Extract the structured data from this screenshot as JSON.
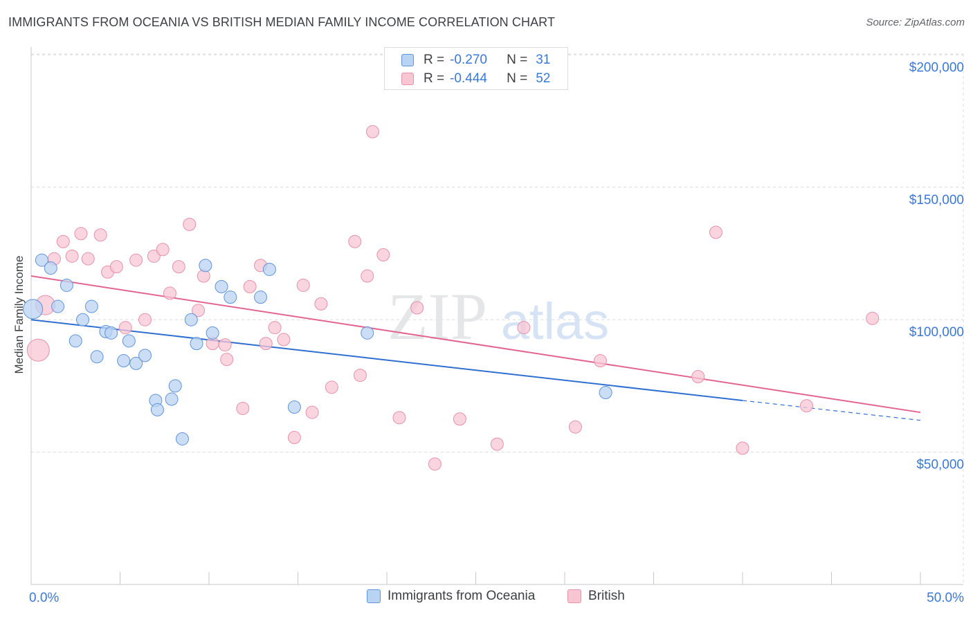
{
  "header": {
    "title": "IMMIGRANTS FROM OCEANIA VS BRITISH MEDIAN FAMILY INCOME CORRELATION CHART",
    "source": "Source: ZipAtlas.com"
  },
  "watermark": {
    "zip": "ZIP",
    "atlas": "atlas"
  },
  "legend": {
    "rows": [
      {
        "r_label": "R =",
        "r_value": "-0.270",
        "n_label": "N =",
        "n_value": "31"
      },
      {
        "r_label": "R =",
        "r_value": "-0.444",
        "n_label": "N =",
        "n_value": "52"
      }
    ]
  },
  "colors": {
    "blue_fill": "#b9d3f3",
    "blue_stroke": "#5f94d8",
    "blue_line": "#2f6fd0",
    "pink_fill": "#f8c5d3",
    "pink_stroke": "#e691aa",
    "pink_line": "#e2658e",
    "axis_label": "#3b78d6",
    "grid": "#d9dcdf"
  },
  "chart_data": {
    "type": "scatter",
    "title": "IMMIGRANTS FROM OCEANIA VS BRITISH MEDIAN FAMILY INCOME CORRELATION CHART",
    "xlabel": "",
    "ylabel": "Median Family Income",
    "xlim": [
      0,
      50
    ],
    "ylim": [
      0,
      210000
    ],
    "x_tick_labels": [
      "0.0%",
      "50.0%"
    ],
    "y_ticks": [
      50000,
      100000,
      150000,
      200000
    ],
    "y_tick_labels": [
      "$50,000",
      "$100,000",
      "$150,000",
      "$200,000"
    ],
    "legend_position": "top-center",
    "series": [
      {
        "name": "Immigrants from Oceania",
        "r": -0.27,
        "n": 31,
        "points": [
          [
            0.1,
            104000,
            14
          ],
          [
            0.6,
            122500,
            9
          ],
          [
            1.1,
            119500,
            9
          ],
          [
            1.5,
            105000,
            9
          ],
          [
            2.0,
            113000,
            9
          ],
          [
            2.5,
            92000,
            9
          ],
          [
            2.9,
            100000,
            9
          ],
          [
            3.4,
            105000,
            9
          ],
          [
            3.7,
            86000,
            9
          ],
          [
            4.2,
            95500,
            9
          ],
          [
            4.5,
            95000,
            9
          ],
          [
            5.2,
            84500,
            9
          ],
          [
            5.5,
            92000,
            9
          ],
          [
            5.9,
            83500,
            9
          ],
          [
            6.4,
            86500,
            9
          ],
          [
            7.0,
            69500,
            9
          ],
          [
            7.1,
            66000,
            9
          ],
          [
            7.9,
            70000,
            9
          ],
          [
            8.1,
            75000,
            9
          ],
          [
            8.5,
            55000,
            9
          ],
          [
            9.0,
            100000,
            9
          ],
          [
            9.3,
            91000,
            9
          ],
          [
            9.8,
            120500,
            9
          ],
          [
            10.2,
            95000,
            9
          ],
          [
            10.7,
            112500,
            9
          ],
          [
            11.2,
            108500,
            9
          ],
          [
            12.9,
            108500,
            9
          ],
          [
            13.4,
            119000,
            9
          ],
          [
            14.8,
            67000,
            9
          ],
          [
            18.9,
            95000,
            9
          ],
          [
            32.3,
            72500,
            9
          ]
        ],
        "trend": {
          "x0": 0,
          "y0": 100000,
          "x1": 40,
          "y1": 69500,
          "dash_to_x": 50,
          "dash_to_y": 62000
        }
      },
      {
        "name": "British",
        "r": -0.444,
        "n": 52,
        "points": [
          [
            0.4,
            88500,
            16
          ],
          [
            0.8,
            105500,
            14
          ],
          [
            1.8,
            129500,
            9
          ],
          [
            1.3,
            123000,
            9
          ],
          [
            2.3,
            124000,
            9
          ],
          [
            2.8,
            132500,
            9
          ],
          [
            3.2,
            123000,
            9
          ],
          [
            3.9,
            132000,
            9
          ],
          [
            4.3,
            118000,
            9
          ],
          [
            4.8,
            120000,
            9
          ],
          [
            5.3,
            97000,
            9
          ],
          [
            5.9,
            122500,
            9
          ],
          [
            6.4,
            100000,
            9
          ],
          [
            6.9,
            124000,
            9
          ],
          [
            7.4,
            126500,
            9
          ],
          [
            7.8,
            110000,
            9
          ],
          [
            8.3,
            120000,
            9
          ],
          [
            8.9,
            136000,
            9
          ],
          [
            9.4,
            103500,
            9
          ],
          [
            9.7,
            116500,
            9
          ],
          [
            10.2,
            91000,
            9
          ],
          [
            10.9,
            90500,
            9
          ],
          [
            11.0,
            85000,
            9
          ],
          [
            11.9,
            66500,
            9
          ],
          [
            12.3,
            112500,
            9
          ],
          [
            12.9,
            120500,
            9
          ],
          [
            13.2,
            91000,
            9
          ],
          [
            13.7,
            97000,
            9
          ],
          [
            14.2,
            92500,
            9
          ],
          [
            14.8,
            55500,
            9
          ],
          [
            15.3,
            113000,
            9
          ],
          [
            15.8,
            65000,
            9
          ],
          [
            16.3,
            106000,
            9
          ],
          [
            16.9,
            74500,
            9
          ],
          [
            18.2,
            129500,
            9
          ],
          [
            18.5,
            79000,
            9
          ],
          [
            18.9,
            116500,
            9
          ],
          [
            19.2,
            171000,
            9
          ],
          [
            19.8,
            124500,
            9
          ],
          [
            20.7,
            63000,
            9
          ],
          [
            21.7,
            104500,
            9
          ],
          [
            22.7,
            45500,
            9
          ],
          [
            24.1,
            62500,
            9
          ],
          [
            26.2,
            53000,
            9
          ],
          [
            27.7,
            97000,
            9
          ],
          [
            30.6,
            59500,
            9
          ],
          [
            32.0,
            84500,
            9
          ],
          [
            37.5,
            78500,
            9
          ],
          [
            38.5,
            133000,
            9
          ],
          [
            40.0,
            51500,
            9
          ],
          [
            43.6,
            67500,
            9
          ],
          [
            47.3,
            100500,
            9
          ]
        ],
        "trend": {
          "x0": 0,
          "y0": 116500,
          "x1": 50,
          "y1": 65000
        }
      }
    ]
  }
}
